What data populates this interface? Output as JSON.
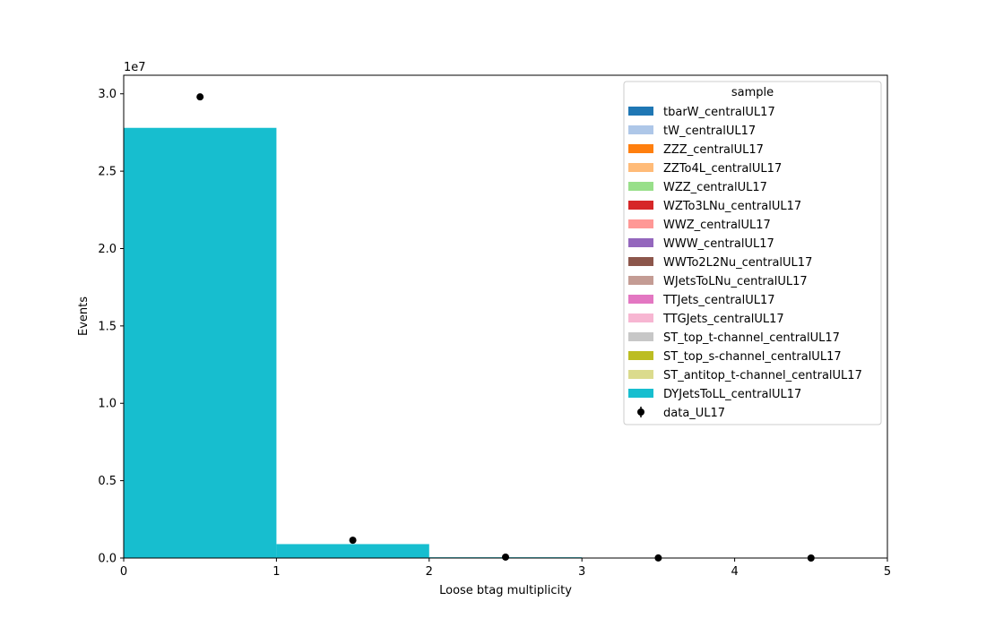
{
  "chart_data": {
    "type": "bar",
    "stacked": true,
    "xlabel": "Loose btag multiplicity",
    "ylabel": "Events",
    "scale_label": "1e7",
    "xlim": [
      0,
      5
    ],
    "ylim": [
      0,
      31200000
    ],
    "xticks": [
      "0",
      "1",
      "2",
      "3",
      "4",
      "5"
    ],
    "yticks": [
      "0.0",
      "0.5",
      "1.0",
      "1.5",
      "2.0",
      "2.5",
      "3.0"
    ],
    "ytick_values": [
      0,
      5000000,
      10000000,
      15000000,
      20000000,
      25000000,
      30000000
    ],
    "bin_edges": [
      0,
      1,
      2,
      3,
      4,
      5
    ],
    "legend": {
      "title": "sample",
      "placement": "upper right"
    },
    "series": [
      {
        "name": "tbarW_centralUL17",
        "color": "#1f77b4",
        "values": [
          0,
          0,
          0,
          0,
          0
        ]
      },
      {
        "name": "tW_centralUL17",
        "color": "#aec7e8",
        "values": [
          0,
          0,
          0,
          0,
          0
        ]
      },
      {
        "name": "ZZZ_centralUL17",
        "color": "#ff7f0e",
        "values": [
          0,
          0,
          0,
          0,
          0
        ]
      },
      {
        "name": "ZZTo4L_centralUL17",
        "color": "#ffbb78",
        "values": [
          0,
          0,
          0,
          0,
          0
        ]
      },
      {
        "name": "WZZ_centralUL17",
        "color": "#98df8a",
        "values": [
          0,
          0,
          0,
          0,
          0
        ]
      },
      {
        "name": "WZTo3LNu_centralUL17",
        "color": "#d62728",
        "values": [
          0,
          0,
          0,
          0,
          0
        ]
      },
      {
        "name": "WWZ_centralUL17",
        "color": "#ff9896",
        "values": [
          0,
          0,
          0,
          0,
          0
        ]
      },
      {
        "name": "WWW_centralUL17",
        "color": "#9467bd",
        "values": [
          0,
          0,
          0,
          0,
          0
        ]
      },
      {
        "name": "WWTo2L2Nu_centralUL17",
        "color": "#8c564b",
        "values": [
          0,
          0,
          0,
          0,
          0
        ]
      },
      {
        "name": "WJetsToLNu_centralUL17",
        "color": "#c49c94",
        "values": [
          0,
          0,
          0,
          0,
          0
        ]
      },
      {
        "name": "TTJets_centralUL17",
        "color": "#e377c2",
        "values": [
          0,
          0,
          0,
          0,
          0
        ]
      },
      {
        "name": "TTGJets_centralUL17",
        "color": "#f7b6d2",
        "values": [
          0,
          0,
          0,
          0,
          0
        ]
      },
      {
        "name": "ST_top_t-channel_centralUL17",
        "color": "#c7c7c7",
        "values": [
          0,
          0,
          0,
          0,
          0
        ]
      },
      {
        "name": "ST_top_s-channel_centralUL17",
        "color": "#bcbd22",
        "values": [
          0,
          0,
          0,
          0,
          0
        ]
      },
      {
        "name": "ST_antitop_t-channel_centralUL17",
        "color": "#dbdb8d",
        "values": [
          0,
          0,
          0,
          0,
          0
        ]
      },
      {
        "name": "DYJetsToLL_centralUL17",
        "color": "#17becf",
        "values": [
          27800000,
          900000,
          50000,
          0,
          0
        ]
      }
    ],
    "data_points": {
      "name": "data_UL17",
      "color": "#000000",
      "x": [
        0.5,
        1.5,
        2.5,
        3.5,
        4.5
      ],
      "y": [
        29800000,
        1150000,
        60000,
        5000,
        0
      ]
    }
  }
}
